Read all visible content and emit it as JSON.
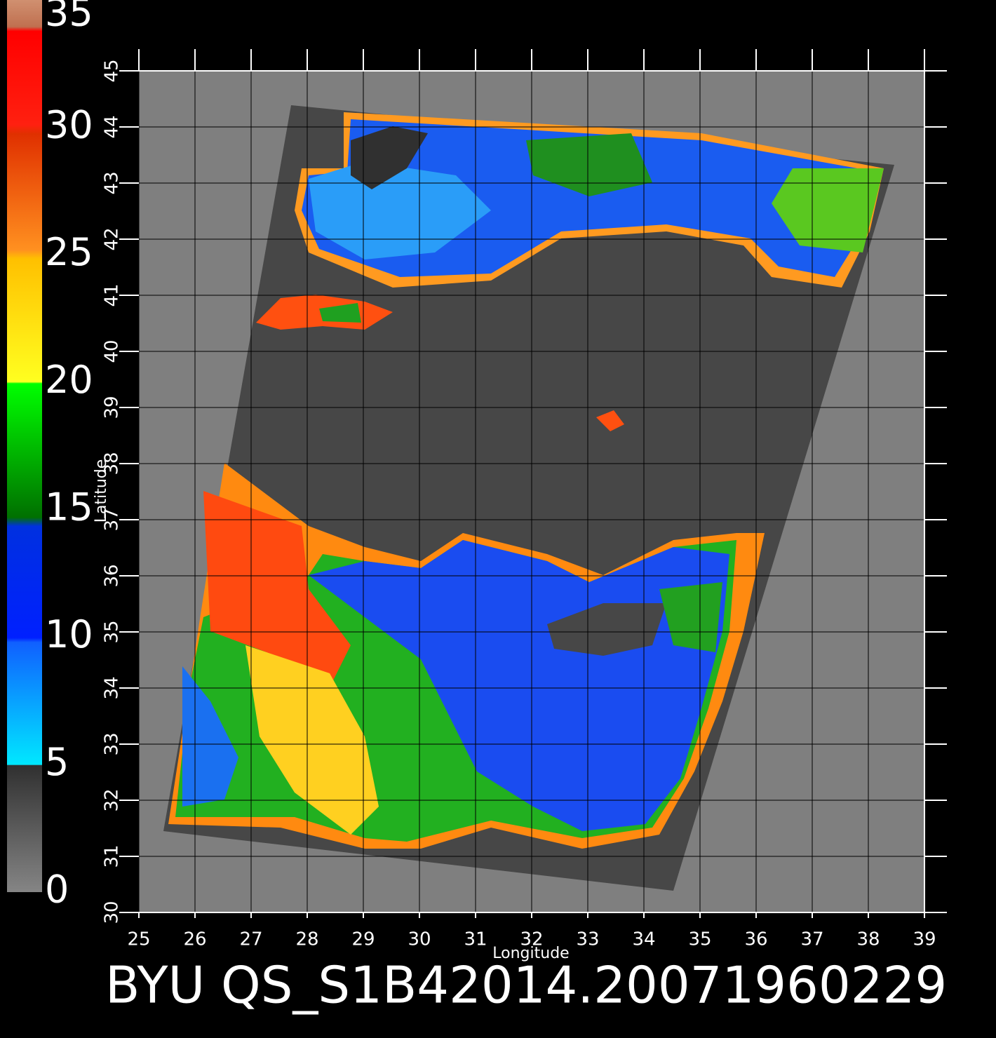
{
  "chart_data": {
    "type": "map",
    "title": "BYU  QS_S1B42014.20071960229",
    "x_label": "Longitude",
    "y_label": "Latitude",
    "xlim": [
      25,
      39
    ],
    "ylim": [
      30,
      45
    ],
    "xticks": [
      25,
      26,
      27,
      28,
      29,
      30,
      31,
      32,
      33,
      34,
      35,
      36,
      37,
      38,
      39
    ],
    "yticks": [
      30,
      31,
      32,
      33,
      34,
      35,
      36,
      37,
      38,
      39,
      40,
      41,
      42,
      43,
      44,
      45
    ],
    "grid": true,
    "colorbar": {
      "lim": [
        0,
        35
      ],
      "ticks": [
        0,
        5,
        10,
        15,
        20,
        25,
        30,
        35
      ]
    }
  }
}
